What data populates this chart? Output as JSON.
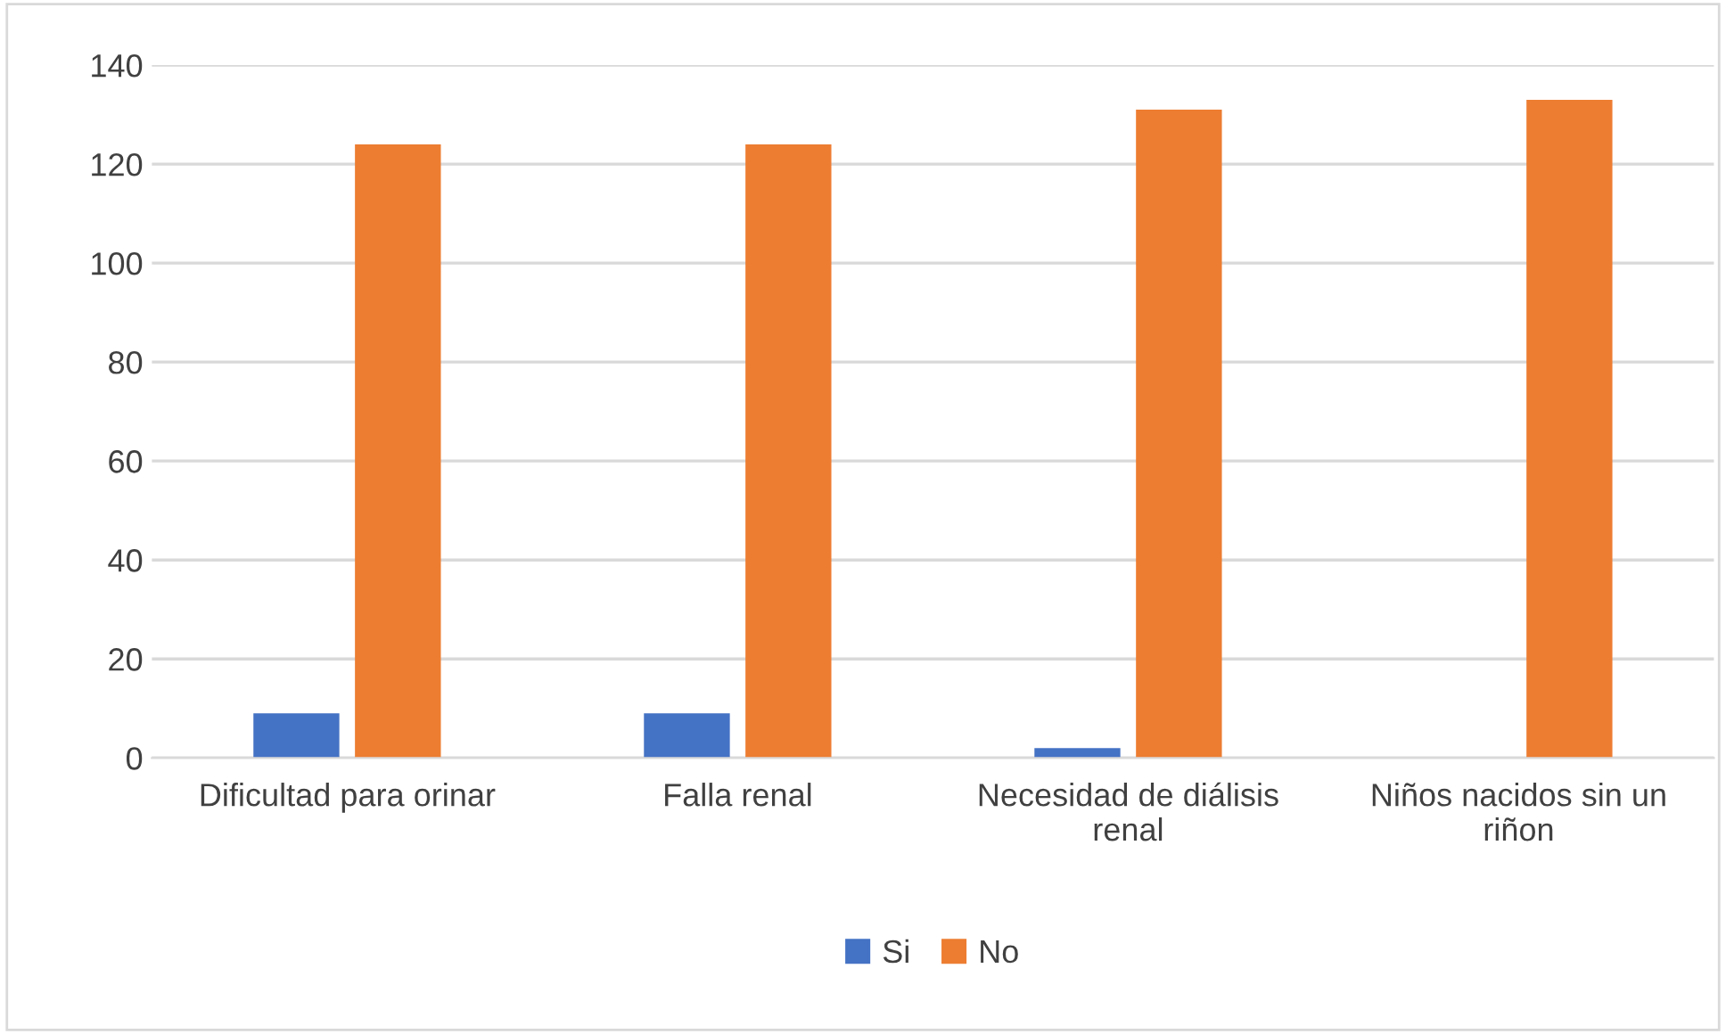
{
  "chart_data": {
    "type": "bar",
    "categories": [
      "Dificultad para orinar",
      "Falla renal",
      "Necesidad de diálisis renal",
      "Niños nacidos sin un riñon"
    ],
    "series": [
      {
        "name": "Si",
        "color": "#4472c4",
        "values": [
          9,
          9,
          2,
          0
        ]
      },
      {
        "name": "No",
        "color": "#ed7d31",
        "values": [
          124,
          124,
          131,
          133
        ]
      }
    ],
    "ylim": [
      0,
      140
    ],
    "yticks": [
      0,
      20,
      40,
      60,
      80,
      100,
      120,
      140
    ],
    "grid": "y",
    "legend": "bottom"
  }
}
